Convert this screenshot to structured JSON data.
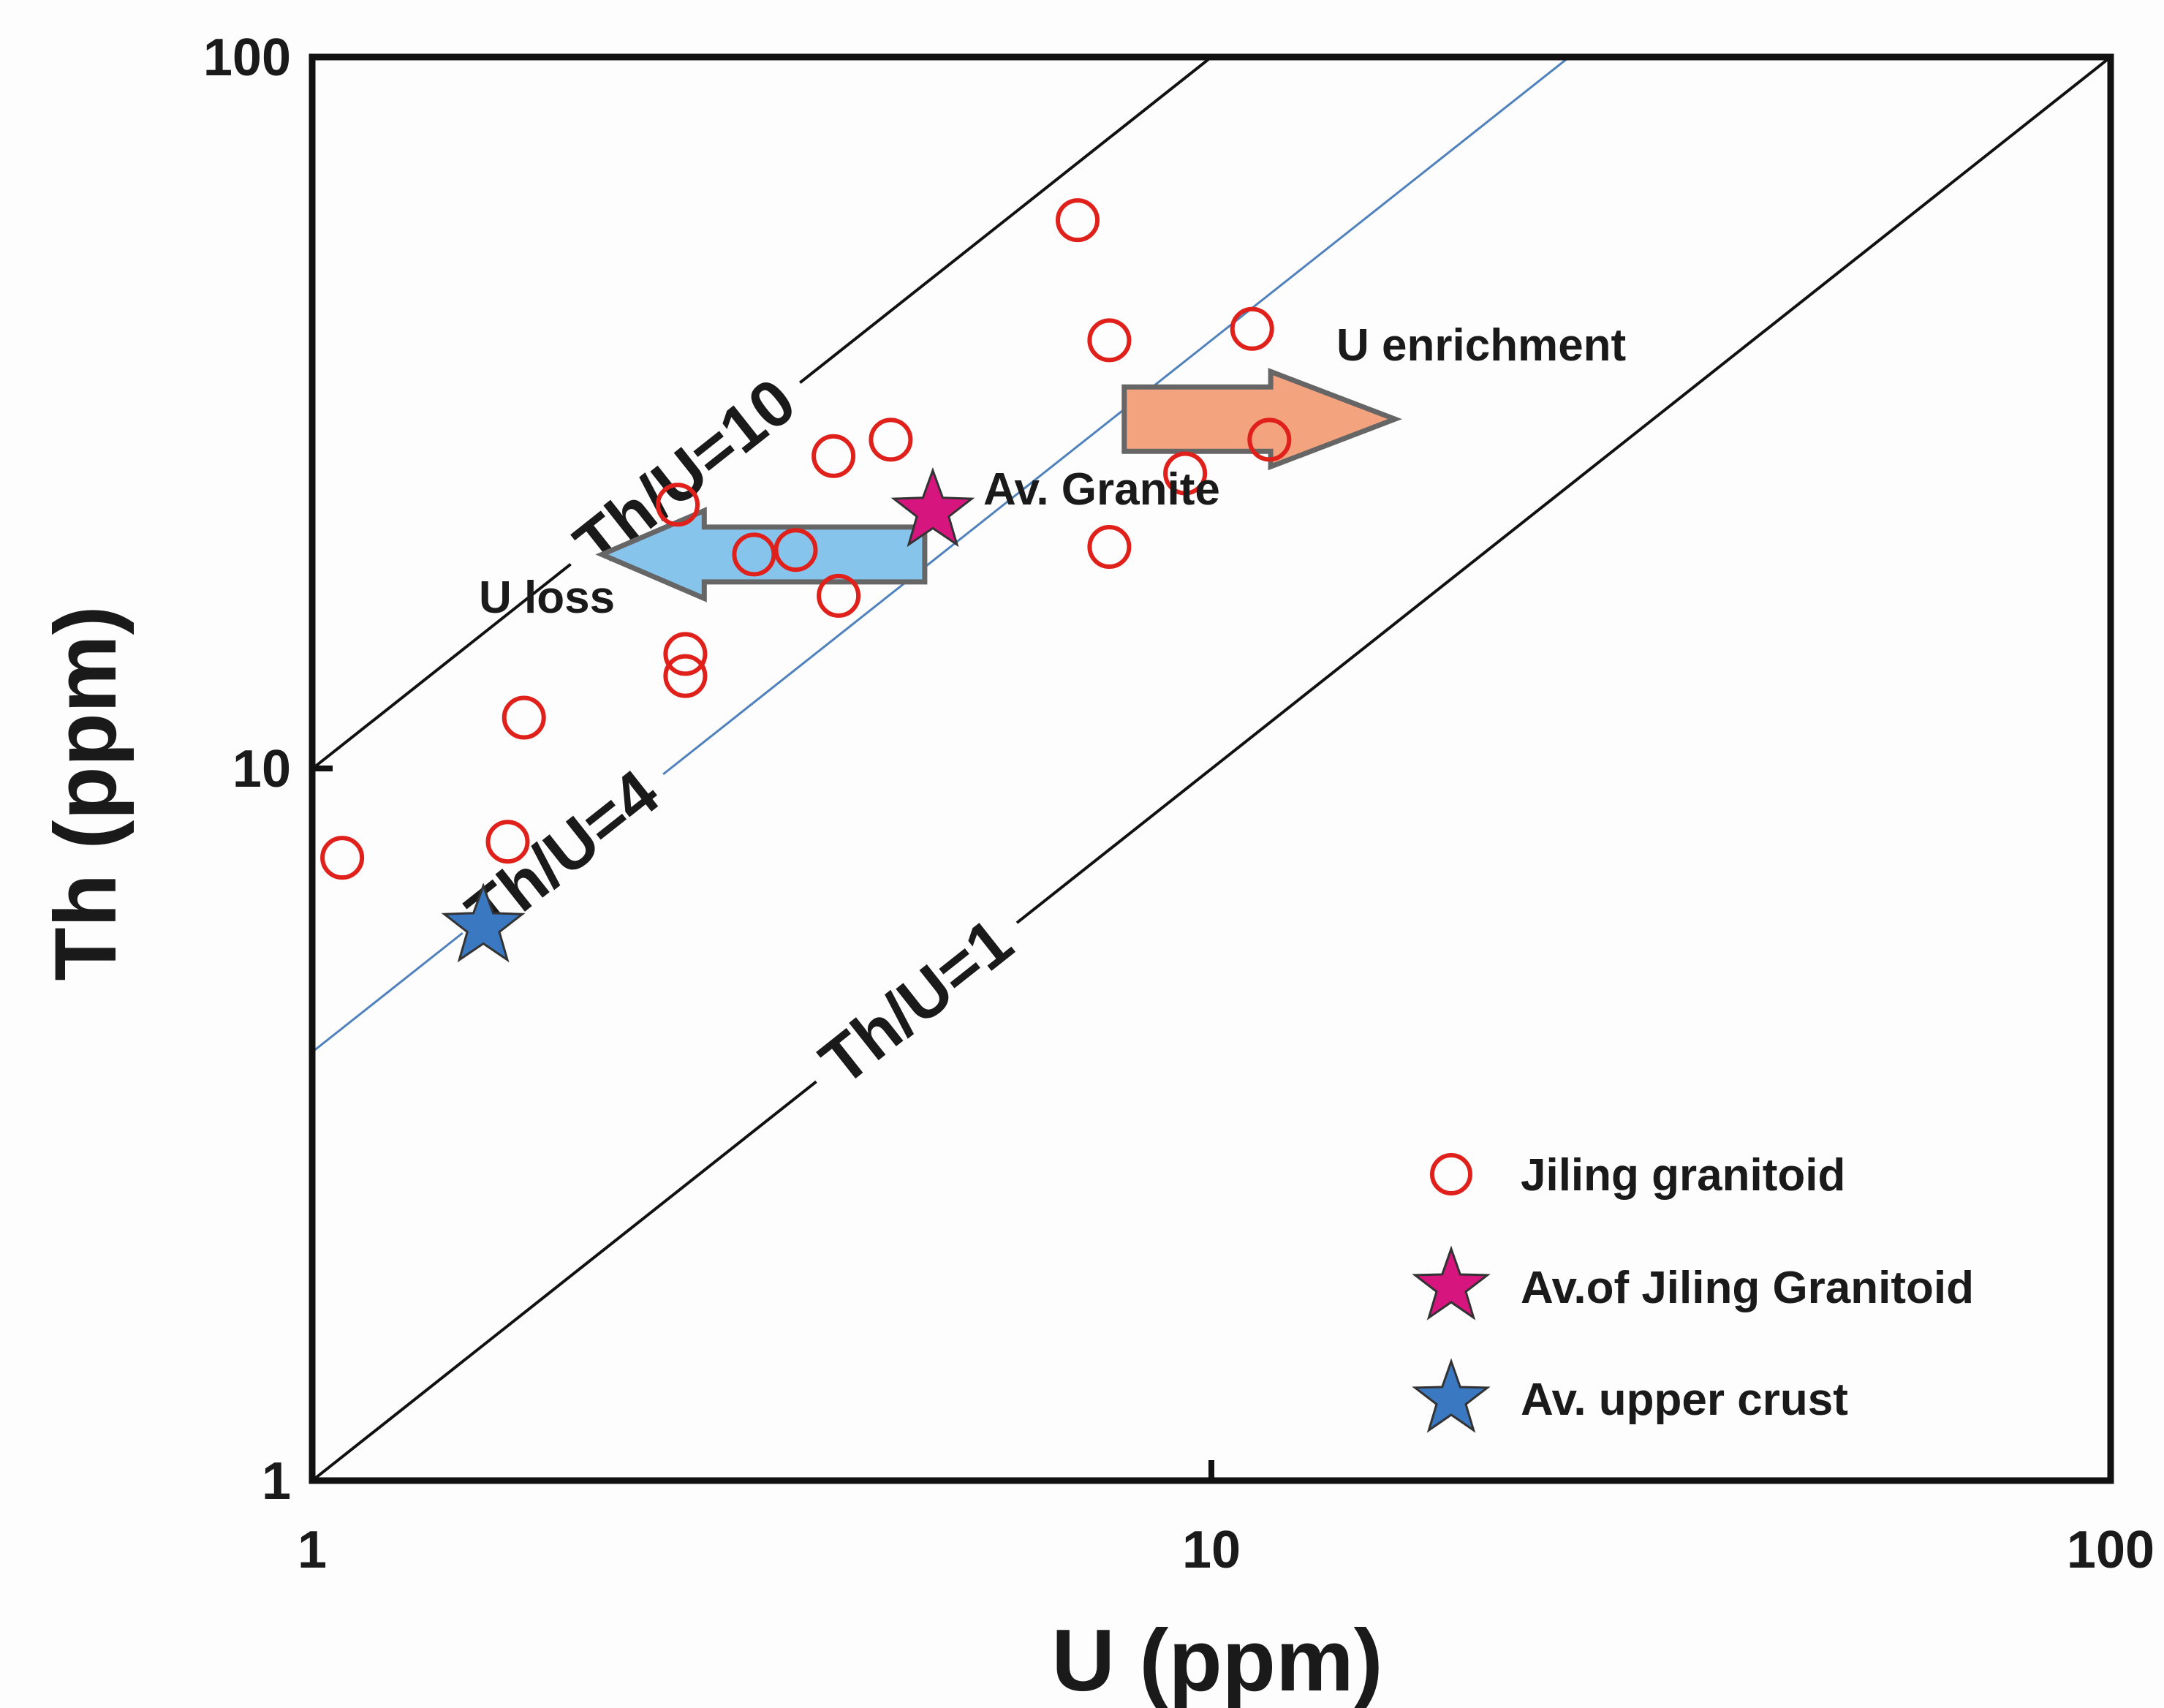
{
  "chart_data": {
    "type": "scatter",
    "title": "",
    "xlabel": "U (ppm)",
    "ylabel": "Th (ppm)",
    "xscale": "log",
    "yscale": "log",
    "xlim": [
      1,
      100
    ],
    "ylim": [
      1,
      100
    ],
    "xticks": [
      {
        "value": 1,
        "label": "1"
      },
      {
        "value": 10,
        "label": "10"
      },
      {
        "value": 100,
        "label": "100"
      }
    ],
    "yticks": [
      {
        "value": 1,
        "label": "1"
      },
      {
        "value": 10,
        "label": "10"
      },
      {
        "value": 100,
        "label": "100"
      }
    ],
    "reference_lines": [
      {
        "ratio": 10,
        "label": "Th/U=10",
        "color": "#111111"
      },
      {
        "ratio": 4,
        "label": "Th/U=4",
        "color": "#4f81bd"
      },
      {
        "ratio": 1,
        "label": "Th/U=1",
        "color": "#111111"
      }
    ],
    "series": [
      {
        "name": "Jiling granitoid",
        "marker": "open-circle",
        "color": "#e0201b",
        "points": [
          {
            "x": 1.08,
            "y": 7.5
          },
          {
            "x": 1.65,
            "y": 7.9
          },
          {
            "x": 1.72,
            "y": 11.8
          },
          {
            "x": 2.55,
            "y": 23.5
          },
          {
            "x": 2.6,
            "y": 14.5
          },
          {
            "x": 2.6,
            "y": 13.5
          },
          {
            "x": 3.1,
            "y": 20.0
          },
          {
            "x": 3.45,
            "y": 20.3
          },
          {
            "x": 3.8,
            "y": 27.5
          },
          {
            "x": 3.85,
            "y": 17.5
          },
          {
            "x": 4.4,
            "y": 29.0
          },
          {
            "x": 7.1,
            "y": 59.0
          },
          {
            "x": 7.7,
            "y": 40.0
          },
          {
            "x": 7.7,
            "y": 20.5
          },
          {
            "x": 9.35,
            "y": 26.0
          },
          {
            "x": 11.1,
            "y": 41.5
          },
          {
            "x": 11.6,
            "y": 29.0
          }
        ]
      },
      {
        "name": "Av.of Jiling Granitoid",
        "marker": "star",
        "color": "#d6157f",
        "points": [
          {
            "x": 4.9,
            "y": 23.0
          }
        ]
      },
      {
        "name": "Av. upper crust",
        "marker": "star",
        "color": "#3a78c2",
        "points": [
          {
            "x": 1.55,
            "y": 6.0
          }
        ]
      }
    ],
    "arrows": [
      {
        "label": "U enrichment",
        "direction": "right",
        "color": "#f4a37f",
        "x_from": 8.0,
        "x_to": 16.0,
        "y": 31.0
      },
      {
        "label": "U loss",
        "direction": "left",
        "color": "#86c4ec",
        "x_from": 4.8,
        "x_to": 2.1,
        "y": 20.0
      }
    ],
    "annotations": [
      {
        "text": "Av. Granite",
        "x": 5.3,
        "y": 23.0
      }
    ],
    "legend": {
      "position": "bottom-right"
    }
  }
}
